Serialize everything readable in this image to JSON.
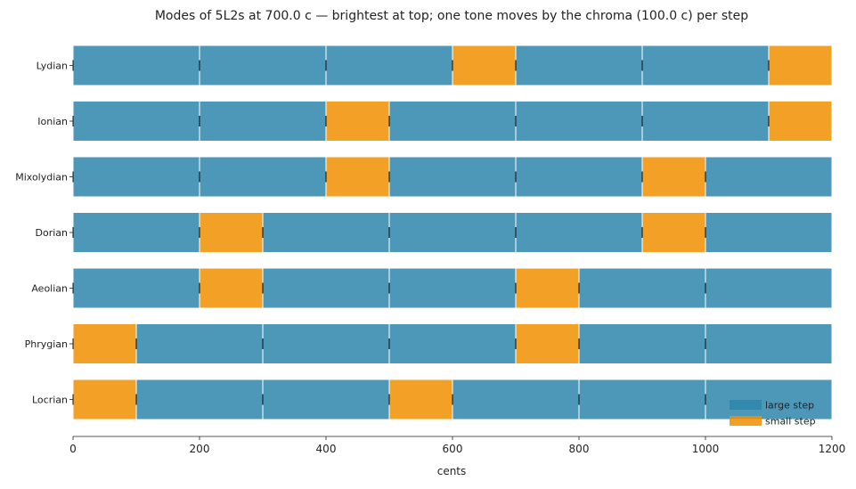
{
  "chart_data": {
    "type": "bar",
    "subtype": "horizontal-stacked",
    "title": "Modes of 5L2s at 700.0 c — brightest at top; one tone moves by the chroma (100.0 c) per step",
    "xlabel": "cents",
    "ylabel": "",
    "xlim": [
      0,
      1200
    ],
    "xticks": [
      0,
      200,
      400,
      600,
      800,
      1000,
      1200
    ],
    "grid": false,
    "legend_position": "bottom-right",
    "step_sizes": {
      "L": 200,
      "s": 100
    },
    "legend": [
      {
        "key": "L",
        "label": "large step",
        "color": "#2e86ab"
      },
      {
        "key": "s",
        "label": "small step",
        "color": "#f18f01"
      }
    ],
    "modes": [
      {
        "name": "Lydian",
        "steps": [
          "L",
          "L",
          "L",
          "s",
          "L",
          "L",
          "s"
        ]
      },
      {
        "name": "Ionian",
        "steps": [
          "L",
          "L",
          "s",
          "L",
          "L",
          "L",
          "s"
        ]
      },
      {
        "name": "Mixolydian",
        "steps": [
          "L",
          "L",
          "s",
          "L",
          "L",
          "s",
          "L"
        ]
      },
      {
        "name": "Dorian",
        "steps": [
          "L",
          "s",
          "L",
          "L",
          "L",
          "s",
          "L"
        ]
      },
      {
        "name": "Aeolian",
        "steps": [
          "L",
          "s",
          "L",
          "L",
          "s",
          "L",
          "L"
        ]
      },
      {
        "name": "Phrygian",
        "steps": [
          "s",
          "L",
          "L",
          "L",
          "s",
          "L",
          "L"
        ]
      },
      {
        "name": "Locrian",
        "steps": [
          "s",
          "L",
          "L",
          "s",
          "L",
          "L",
          "L"
        ]
      }
    ]
  }
}
